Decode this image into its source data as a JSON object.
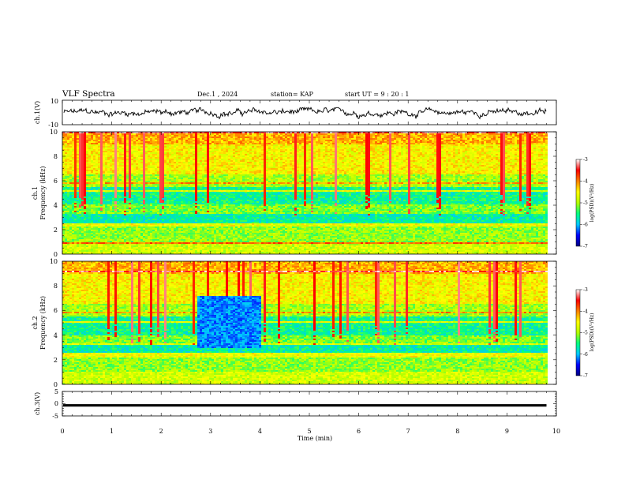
{
  "header": {
    "title": "VLF Spectra",
    "date": "Dec.1 , 2024",
    "station": "station= KAP",
    "start": "start  UT =   9 : 20 : 1"
  },
  "colors": {
    "axis": "#000000",
    "colormap": [
      "#00007f",
      "#0000ff",
      "#00c8ff",
      "#00ff80",
      "#b4ff00",
      "#ffff00",
      "#ff8000",
      "#ff0000",
      "#ffffff"
    ]
  },
  "chart_data": [
    {
      "type": "line",
      "name": "ch1-waveform",
      "ylabel": "ch.1(V)",
      "ylim": [
        -10,
        10
      ],
      "yticks": [
        "10",
        "-10"
      ],
      "xlim": [
        0,
        10
      ],
      "waveform_amplitude_range": [
        -5,
        4
      ]
    },
    {
      "type": "heatmap",
      "name": "ch1-spectrogram",
      "ylabel_top": "ch.1",
      "ylabel": "Frequency (kHz)",
      "ylim": [
        0,
        10
      ],
      "yticks": [
        "0",
        "2",
        "4",
        "6",
        "8",
        "10"
      ],
      "xlim": [
        0,
        10
      ],
      "data_extent_min": 9.8,
      "colorbar": {
        "label": "log(PSD)(V²/Hz)",
        "range": [
          -7,
          -3
        ],
        "ticks": [
          "-3",
          "-4",
          "-5",
          "-6",
          "-7"
        ]
      }
    },
    {
      "type": "heatmap",
      "name": "ch2-spectrogram",
      "ylabel_top": "ch.2",
      "ylabel": "Frequency (kHz)",
      "ylim": [
        0,
        10
      ],
      "yticks": [
        "0",
        "2",
        "4",
        "6",
        "8",
        "10"
      ],
      "xlim": [
        0,
        10
      ],
      "data_extent_min": 9.8,
      "colorbar": {
        "label": "log(PSD)(V²/Hz)",
        "range": [
          -7,
          -3
        ],
        "ticks": [
          "-3",
          "-4",
          "-5",
          "-6",
          "-7"
        ]
      }
    },
    {
      "type": "line",
      "name": "ch3-signal",
      "ylabel": "ch.3(V)",
      "ylim": [
        -5,
        5
      ],
      "yticks": [
        "5",
        "0",
        "-5"
      ],
      "xlim": [
        0,
        10
      ],
      "xticks": [
        "0",
        "1",
        "2",
        "3",
        "4",
        "5",
        "6",
        "7",
        "8",
        "9",
        "10"
      ],
      "xlabel": "Time (min)",
      "level_band": [
        -1.2,
        -0.2
      ]
    }
  ]
}
